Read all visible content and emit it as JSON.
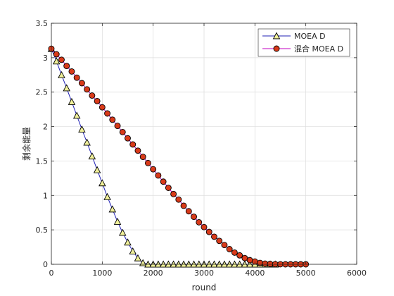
{
  "chart_data": {
    "type": "line",
    "xlabel": "round",
    "ylabel": "剩余能量",
    "xlim": [
      0,
      6000
    ],
    "ylim": [
      0,
      3.5
    ],
    "xticks": [
      0,
      1000,
      2000,
      3000,
      4000,
      5000,
      6000
    ],
    "yticks": [
      0,
      0.5,
      1,
      1.5,
      2,
      2.5,
      3,
      3.5
    ],
    "xtick_labels": [
      "0",
      "1000",
      "2000",
      "3000",
      "4000",
      "5000",
      "6000"
    ],
    "ytick_labels": [
      "0",
      "0.5",
      "1",
      "1.5",
      "2",
      "2.5",
      "3",
      "3.5"
    ],
    "grid": true,
    "legend_position": "top-right",
    "series": [
      {
        "name": "MOEA D",
        "line_color": "#1f1fb4",
        "marker": "triangle",
        "marker_face": "#f0f09a",
        "marker_edge": "#000000",
        "x": [
          0,
          100,
          200,
          300,
          400,
          500,
          600,
          700,
          800,
          900,
          1000,
          1100,
          1200,
          1300,
          1400,
          1500,
          1600,
          1700,
          1800,
          1900,
          2000,
          2100,
          2200,
          2300,
          2400,
          2500,
          2600,
          2700,
          2800,
          2900,
          3000,
          3100,
          3200,
          3300,
          3400,
          3500,
          3600,
          3700,
          3800,
          3900,
          4000,
          4100,
          4200,
          4300,
          4400
        ],
        "y": [
          3.13,
          2.95,
          2.75,
          2.56,
          2.36,
          2.16,
          1.96,
          1.77,
          1.57,
          1.37,
          1.18,
          0.98,
          0.8,
          0.62,
          0.46,
          0.32,
          0.19,
          0.09,
          0.02,
          0,
          0,
          0,
          0,
          0,
          0,
          0,
          0,
          0,
          0,
          0,
          0,
          0,
          0,
          0,
          0,
          0,
          0,
          0,
          0,
          0,
          0,
          0,
          0,
          0,
          0
        ]
      },
      {
        "name": "混合 MOEA D",
        "line_color": "#c000c0",
        "marker": "circle",
        "marker_face": "#d93a1a",
        "marker_edge": "#000000",
        "x": [
          0,
          100,
          200,
          300,
          400,
          500,
          600,
          700,
          800,
          900,
          1000,
          1100,
          1200,
          1300,
          1400,
          1500,
          1600,
          1700,
          1800,
          1900,
          2000,
          2100,
          2200,
          2300,
          2400,
          2500,
          2600,
          2700,
          2800,
          2900,
          3000,
          3100,
          3200,
          3300,
          3400,
          3500,
          3600,
          3700,
          3800,
          3900,
          4000,
          4100,
          4200,
          4300,
          4400,
          4500,
          4600,
          4700,
          4800,
          4900,
          5000
        ],
        "y": [
          3.13,
          3.05,
          2.97,
          2.88,
          2.8,
          2.71,
          2.63,
          2.54,
          2.45,
          2.37,
          2.28,
          2.19,
          2.1,
          2.01,
          1.92,
          1.83,
          1.74,
          1.65,
          1.56,
          1.47,
          1.38,
          1.29,
          1.2,
          1.11,
          1.02,
          0.94,
          0.85,
          0.77,
          0.69,
          0.61,
          0.54,
          0.47,
          0.4,
          0.34,
          0.28,
          0.22,
          0.17,
          0.13,
          0.09,
          0.06,
          0.04,
          0.02,
          0.01,
          0.005,
          0.002,
          0.001,
          0,
          0,
          0,
          0,
          0
        ]
      }
    ]
  }
}
